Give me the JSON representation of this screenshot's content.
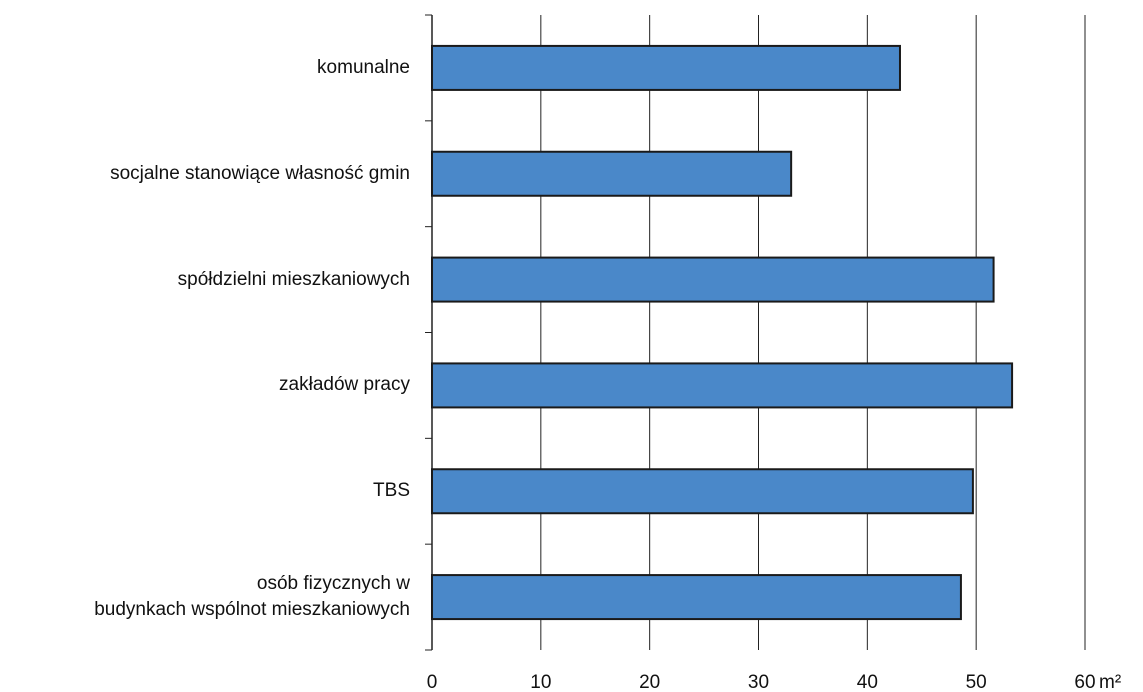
{
  "chart_data": {
    "type": "bar",
    "orientation": "horizontal",
    "categories": [
      "komunalne",
      "socjalne stanowiące własność gmin",
      "spółdzielni mieszkaniowych",
      "zakładów pracy",
      "TBS",
      "osób fizycznych w\nbudynkach wspólnot mieszkaniowych"
    ],
    "values": [
      43,
      33,
      51.6,
      53.3,
      49.7,
      48.6
    ],
    "color": "#4a88c9",
    "xlim": [
      0,
      60
    ],
    "xticks": [
      0,
      10,
      20,
      30,
      40,
      50,
      60
    ],
    "x_unit": "m²",
    "grid": true
  }
}
